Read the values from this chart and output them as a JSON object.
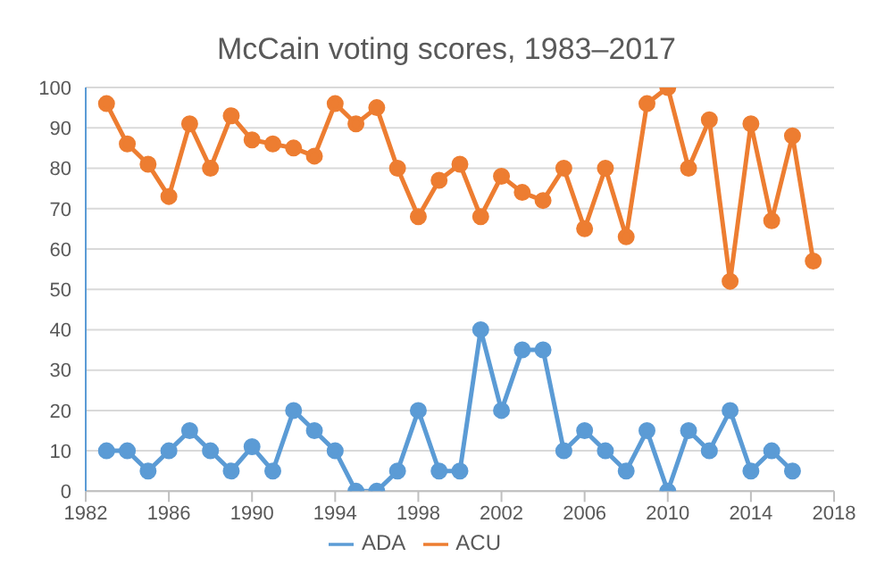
{
  "chart_data": {
    "type": "line",
    "title": "McCain voting scores, 1983–2017",
    "series": [
      {
        "name": "ADA",
        "color": "#5b9bd5",
        "x": [
          1983,
          1984,
          1985,
          1986,
          1987,
          1988,
          1989,
          1990,
          1991,
          1992,
          1993,
          1994,
          1995,
          1996,
          1997,
          1998,
          1999,
          2000,
          2001,
          2002,
          2003,
          2004,
          2005,
          2006,
          2007,
          2008,
          2009,
          2010,
          2011,
          2012,
          2013,
          2014,
          2015,
          2016
        ],
        "values": [
          10,
          10,
          5,
          10,
          15,
          10,
          5,
          11,
          5,
          20,
          15,
          10,
          0,
          0,
          5,
          20,
          5,
          5,
          40,
          20,
          35,
          35,
          10,
          15,
          10,
          5,
          15,
          0,
          15,
          10,
          20,
          5,
          10,
          5
        ]
      },
      {
        "name": "ACU",
        "color": "#ed7d31",
        "x": [
          1983,
          1984,
          1985,
          1986,
          1987,
          1988,
          1989,
          1990,
          1991,
          1992,
          1993,
          1994,
          1995,
          1996,
          1997,
          1998,
          1999,
          2000,
          2001,
          2002,
          2003,
          2004,
          2005,
          2006,
          2007,
          2008,
          2009,
          2010,
          2011,
          2012,
          2013,
          2014,
          2015,
          2016,
          2017
        ],
        "values": [
          96,
          86,
          81,
          73,
          91,
          80,
          93,
          87,
          86,
          85,
          83,
          96,
          91,
          95,
          80,
          68,
          77,
          81,
          68,
          78,
          74,
          72,
          80,
          65,
          80,
          63,
          96,
          100,
          80,
          92,
          52,
          91,
          67,
          88,
          57
        ]
      }
    ],
    "xlim": [
      1982,
      2018
    ],
    "xticks": [
      1982,
      1986,
      1990,
      1994,
      1998,
      2002,
      2006,
      2010,
      2014,
      2018
    ],
    "ylim": [
      0,
      100
    ],
    "yticks": [
      0,
      10,
      20,
      30,
      40,
      50,
      60,
      70,
      80,
      90,
      100
    ],
    "grid": "y",
    "legend": "bottom",
    "marker": "circle",
    "line_style": "solid"
  }
}
